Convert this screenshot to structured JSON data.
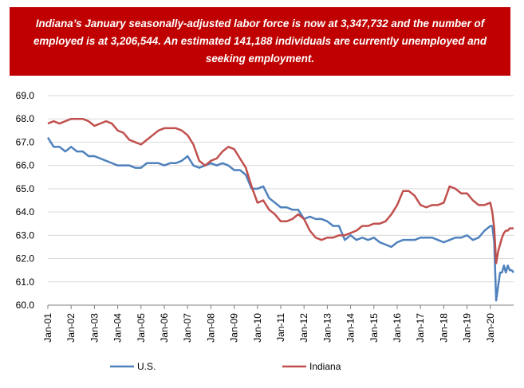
{
  "banner": {
    "text": "Indiana’s January seasonally-adjusted labor force is now at 3,347,732 and the number of employed is at 3,206,544. An estimated 141,188 individuals are currently unemployed and seeking employment."
  },
  "colors": {
    "banner_bg": "#c00000",
    "us_line": "#4f81bd",
    "indiana_line": "#c0504d",
    "axis": "#808080"
  },
  "chart_data": {
    "type": "line",
    "title": "",
    "xlabel": "",
    "ylabel": "",
    "ylim": [
      60.0,
      69.0
    ],
    "yticks": [
      "69.0",
      "68.0",
      "67.0",
      "66.0",
      "65.0",
      "64.0",
      "63.0",
      "62.0",
      "61.0",
      "60.0"
    ],
    "x_ticks": [
      "Jan-01",
      "Jan-02",
      "Jan-03",
      "Jan-04",
      "Jan-05",
      "Jan-06",
      "Jan-07",
      "Jan-08",
      "Jan-09",
      "Jan-10",
      "Jan-11",
      "Jan-12",
      "Jan-13",
      "Jan-14",
      "Jan-15",
      "Jan-16",
      "Jan-17",
      "Jan-18",
      "Jan-19",
      "Jan-20"
    ],
    "x_start": "Jan-01",
    "x_end": "Jan-21",
    "grid": "horizontal",
    "legend_position": "bottom",
    "series": [
      {
        "name": "U.S.",
        "points": [
          [
            "Jan-01",
            67.2
          ],
          [
            "Apr-01",
            66.8
          ],
          [
            "Jul-01",
            66.8
          ],
          [
            "Oct-01",
            66.6
          ],
          [
            "Jan-02",
            66.8
          ],
          [
            "Apr-02",
            66.6
          ],
          [
            "Jul-02",
            66.6
          ],
          [
            "Oct-02",
            66.4
          ],
          [
            "Jan-03",
            66.4
          ],
          [
            "Apr-03",
            66.3
          ],
          [
            "Jul-03",
            66.2
          ],
          [
            "Oct-03",
            66.1
          ],
          [
            "Jan-04",
            66.0
          ],
          [
            "Apr-04",
            66.0
          ],
          [
            "Jul-04",
            66.0
          ],
          [
            "Oct-04",
            65.9
          ],
          [
            "Jan-05",
            65.9
          ],
          [
            "Apr-05",
            66.1
          ],
          [
            "Jul-05",
            66.1
          ],
          [
            "Oct-05",
            66.1
          ],
          [
            "Jan-06",
            66.0
          ],
          [
            "Apr-06",
            66.1
          ],
          [
            "Jul-06",
            66.1
          ],
          [
            "Oct-06",
            66.2
          ],
          [
            "Jan-07",
            66.4
          ],
          [
            "Apr-07",
            66.0
          ],
          [
            "Jul-07",
            65.9
          ],
          [
            "Oct-07",
            66.0
          ],
          [
            "Jan-08",
            66.1
          ],
          [
            "Apr-08",
            66.0
          ],
          [
            "Jul-08",
            66.1
          ],
          [
            "Oct-08",
            66.0
          ],
          [
            "Jan-09",
            65.8
          ],
          [
            "Apr-09",
            65.8
          ],
          [
            "Jul-09",
            65.6
          ],
          [
            "Oct-09",
            65.0
          ],
          [
            "Jan-10",
            65.0
          ],
          [
            "Apr-10",
            65.1
          ],
          [
            "Jul-10",
            64.6
          ],
          [
            "Oct-10",
            64.4
          ],
          [
            "Jan-11",
            64.2
          ],
          [
            "Apr-11",
            64.2
          ],
          [
            "Jul-11",
            64.1
          ],
          [
            "Oct-11",
            64.1
          ],
          [
            "Jan-12",
            63.7
          ],
          [
            "Apr-12",
            63.8
          ],
          [
            "Jul-12",
            63.7
          ],
          [
            "Oct-12",
            63.7
          ],
          [
            "Jan-13",
            63.6
          ],
          [
            "Apr-13",
            63.4
          ],
          [
            "Jul-13",
            63.4
          ],
          [
            "Oct-13",
            62.8
          ],
          [
            "Jan-14",
            63.0
          ],
          [
            "Apr-14",
            62.8
          ],
          [
            "Jul-14",
            62.9
          ],
          [
            "Oct-14",
            62.8
          ],
          [
            "Jan-15",
            62.9
          ],
          [
            "Apr-15",
            62.7
          ],
          [
            "Jul-15",
            62.6
          ],
          [
            "Oct-15",
            62.5
          ],
          [
            "Jan-16",
            62.7
          ],
          [
            "Apr-16",
            62.8
          ],
          [
            "Jul-16",
            62.8
          ],
          [
            "Oct-16",
            62.8
          ],
          [
            "Jan-17",
            62.9
          ],
          [
            "Apr-17",
            62.9
          ],
          [
            "Jul-17",
            62.9
          ],
          [
            "Oct-17",
            62.8
          ],
          [
            "Jan-18",
            62.7
          ],
          [
            "Apr-18",
            62.8
          ],
          [
            "Jul-18",
            62.9
          ],
          [
            "Oct-18",
            62.9
          ],
          [
            "Jan-19",
            63.0
          ],
          [
            "Apr-19",
            62.8
          ],
          [
            "Jul-19",
            62.9
          ],
          [
            "Oct-19",
            63.2
          ],
          [
            "Jan-20",
            63.4
          ],
          [
            "Feb-20",
            63.4
          ],
          [
            "Mar-20",
            62.7
          ],
          [
            "Apr-20",
            60.2
          ],
          [
            "May-20",
            60.8
          ],
          [
            "Jun-20",
            61.4
          ],
          [
            "Jul-20",
            61.4
          ],
          [
            "Aug-20",
            61.7
          ],
          [
            "Sep-20",
            61.4
          ],
          [
            "Oct-20",
            61.7
          ],
          [
            "Nov-20",
            61.5
          ],
          [
            "Dec-20",
            61.5
          ],
          [
            "Jan-21",
            61.4
          ]
        ]
      },
      {
        "name": "Indiana",
        "points": [
          [
            "Jan-01",
            67.8
          ],
          [
            "Apr-01",
            67.9
          ],
          [
            "Jul-01",
            67.8
          ],
          [
            "Oct-01",
            67.9
          ],
          [
            "Jan-02",
            68.0
          ],
          [
            "Apr-02",
            68.0
          ],
          [
            "Jul-02",
            68.0
          ],
          [
            "Oct-02",
            67.9
          ],
          [
            "Jan-03",
            67.7
          ],
          [
            "Apr-03",
            67.8
          ],
          [
            "Jul-03",
            67.9
          ],
          [
            "Oct-03",
            67.8
          ],
          [
            "Jan-04",
            67.5
          ],
          [
            "Apr-04",
            67.4
          ],
          [
            "Jul-04",
            67.1
          ],
          [
            "Oct-04",
            67.0
          ],
          [
            "Jan-05",
            66.9
          ],
          [
            "Apr-05",
            67.1
          ],
          [
            "Jul-05",
            67.3
          ],
          [
            "Oct-05",
            67.5
          ],
          [
            "Jan-06",
            67.6
          ],
          [
            "Apr-06",
            67.6
          ],
          [
            "Jul-06",
            67.6
          ],
          [
            "Oct-06",
            67.5
          ],
          [
            "Jan-07",
            67.3
          ],
          [
            "Apr-07",
            66.9
          ],
          [
            "Jul-07",
            66.2
          ],
          [
            "Oct-07",
            66.0
          ],
          [
            "Jan-08",
            66.2
          ],
          [
            "Apr-08",
            66.3
          ],
          [
            "Jul-08",
            66.6
          ],
          [
            "Oct-08",
            66.8
          ],
          [
            "Jan-09",
            66.7
          ],
          [
            "Apr-09",
            66.3
          ],
          [
            "Jul-09",
            65.9
          ],
          [
            "Oct-09",
            65.1
          ],
          [
            "Jan-10",
            64.4
          ],
          [
            "Apr-10",
            64.5
          ],
          [
            "Jul-10",
            64.1
          ],
          [
            "Oct-10",
            63.9
          ],
          [
            "Jan-11",
            63.6
          ],
          [
            "Apr-11",
            63.6
          ],
          [
            "Jul-11",
            63.7
          ],
          [
            "Oct-11",
            63.9
          ],
          [
            "Jan-12",
            63.7
          ],
          [
            "Apr-12",
            63.2
          ],
          [
            "Jul-12",
            62.9
          ],
          [
            "Oct-12",
            62.8
          ],
          [
            "Jan-13",
            62.9
          ],
          [
            "Apr-13",
            62.9
          ],
          [
            "Jul-13",
            63.0
          ],
          [
            "Oct-13",
            63.0
          ],
          [
            "Jan-14",
            63.1
          ],
          [
            "Apr-14",
            63.2
          ],
          [
            "Jul-14",
            63.4
          ],
          [
            "Oct-14",
            63.4
          ],
          [
            "Jan-15",
            63.5
          ],
          [
            "Apr-15",
            63.5
          ],
          [
            "Jul-15",
            63.6
          ],
          [
            "Oct-15",
            63.9
          ],
          [
            "Jan-16",
            64.3
          ],
          [
            "Apr-16",
            64.9
          ],
          [
            "Jul-16",
            64.9
          ],
          [
            "Oct-16",
            64.7
          ],
          [
            "Jan-17",
            64.3
          ],
          [
            "Apr-17",
            64.2
          ],
          [
            "Jul-17",
            64.3
          ],
          [
            "Oct-17",
            64.3
          ],
          [
            "Jan-18",
            64.4
          ],
          [
            "Apr-18",
            65.1
          ],
          [
            "Jul-18",
            65.0
          ],
          [
            "Oct-18",
            64.8
          ],
          [
            "Jan-19",
            64.8
          ],
          [
            "Apr-19",
            64.5
          ],
          [
            "Jul-19",
            64.3
          ],
          [
            "Oct-19",
            64.3
          ],
          [
            "Jan-20",
            64.4
          ],
          [
            "Feb-20",
            64.0
          ],
          [
            "Mar-20",
            63.3
          ],
          [
            "Apr-20",
            61.8
          ],
          [
            "May-20",
            62.3
          ],
          [
            "Jun-20",
            62.6
          ],
          [
            "Jul-20",
            62.9
          ],
          [
            "Aug-20",
            63.1
          ],
          [
            "Sep-20",
            63.2
          ],
          [
            "Oct-20",
            63.2
          ],
          [
            "Nov-20",
            63.3
          ],
          [
            "Dec-20",
            63.3
          ],
          [
            "Jan-21",
            63.3
          ]
        ]
      }
    ]
  }
}
